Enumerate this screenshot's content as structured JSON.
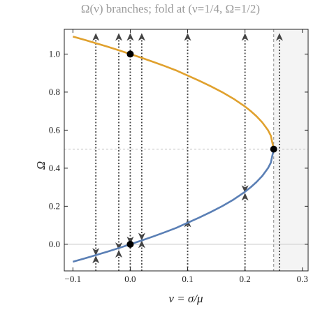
{
  "chart_data": {
    "type": "line",
    "title": "Ω(ν) branches; fold at (ν=1/4, Ω=1/2)",
    "xlabel": "ν = σ/μ",
    "ylabel": "Ω",
    "xlim": [
      -0.115,
      0.31
    ],
    "ylim": [
      -0.14,
      1.13
    ],
    "xticks": [
      -0.1,
      0.0,
      0.1,
      0.2,
      0.3
    ],
    "xtick_labels": [
      "−0.1",
      "0.0",
      "0.1",
      "0.2",
      "0.3"
    ],
    "yticks": [
      0.0,
      0.2,
      0.4,
      0.6,
      0.8,
      1.0
    ],
    "ytick_labels": [
      "0.0",
      "0.2",
      "0.4",
      "0.6",
      "0.8",
      "1.0"
    ],
    "grid": false,
    "series": [
      {
        "color": "#e0a12e",
        "x": [
          -0.1,
          -0.08,
          -0.06,
          -0.04,
          -0.02,
          0.0,
          0.02,
          0.04,
          0.06,
          0.08,
          0.1,
          0.12,
          0.14,
          0.16,
          0.18,
          0.2,
          0.21,
          0.22,
          0.23,
          0.24,
          0.245,
          0.25
        ],
        "y": [
          1.092,
          1.075,
          1.057,
          1.039,
          1.02,
          1.0,
          0.98,
          0.959,
          0.937,
          0.914,
          0.887,
          0.86,
          0.831,
          0.8,
          0.765,
          0.724,
          0.7,
          0.673,
          0.641,
          0.6,
          0.571,
          0.5
        ]
      },
      {
        "color": "#5a7fb5",
        "x": [
          -0.1,
          -0.08,
          -0.06,
          -0.04,
          -0.02,
          0.0,
          0.02,
          0.04,
          0.06,
          0.08,
          0.1,
          0.12,
          0.14,
          0.16,
          0.18,
          0.2,
          0.21,
          0.22,
          0.23,
          0.24,
          0.245,
          0.25
        ],
        "y": [
          -0.092,
          -0.075,
          -0.057,
          -0.039,
          -0.02,
          0.0,
          0.02,
          0.041,
          0.063,
          0.086,
          0.113,
          0.14,
          0.169,
          0.2,
          0.235,
          0.276,
          0.3,
          0.327,
          0.359,
          0.4,
          0.429,
          0.5
        ]
      }
    ],
    "points": [
      {
        "x": 0.0,
        "y": 1.0
      },
      {
        "x": 0.0,
        "y": 0.0
      },
      {
        "x": 0.25,
        "y": 0.5
      }
    ],
    "reference_lines": {
      "horizontal_dashed": 0.5,
      "horizontal_zero": 0.0,
      "vertical_dashed": 0.25
    },
    "shaded_region": {
      "x_from": 0.25,
      "x_to": 0.31,
      "color": "#f4f4f4"
    },
    "flow_lines": [
      {
        "x": -0.06,
        "arrows": [
          {
            "y": -0.04,
            "dir": "down"
          },
          {
            "y": -0.08,
            "dir": "up"
          },
          {
            "y": 1.09,
            "dir": "up"
          }
        ]
      },
      {
        "x": -0.02,
        "arrows": [
          {
            "y": -0.01,
            "dir": "down"
          },
          {
            "y": -0.05,
            "dir": "up"
          },
          {
            "y": 1.09,
            "dir": "up"
          }
        ]
      },
      {
        "x": 0.0,
        "arrows": [
          {
            "y": 0.02,
            "dir": "down"
          },
          {
            "y": 1.09,
            "dir": "up"
          }
        ]
      },
      {
        "x": 0.02,
        "arrows": [
          {
            "y": 0.04,
            "dir": "down"
          },
          {
            "y": 0.0,
            "dir": "up"
          },
          {
            "y": 1.09,
            "dir": "up"
          }
        ]
      },
      {
        "x": 0.1,
        "arrows": [
          {
            "y": 0.11,
            "dir": "up"
          },
          {
            "y": 1.09,
            "dir": "up"
          }
        ]
      },
      {
        "x": 0.2,
        "arrows": [
          {
            "y": 0.29,
            "dir": "down"
          },
          {
            "y": 0.25,
            "dir": "up"
          },
          {
            "y": 1.09,
            "dir": "up"
          }
        ]
      },
      {
        "x": 0.26,
        "arrows": [
          {
            "y": 1.09,
            "dir": "up"
          }
        ]
      }
    ],
    "colors": {
      "upper_branch": "#e0a12e",
      "lower_branch": "#5a7fb5",
      "flow": "#444444",
      "points": "#000000"
    }
  }
}
